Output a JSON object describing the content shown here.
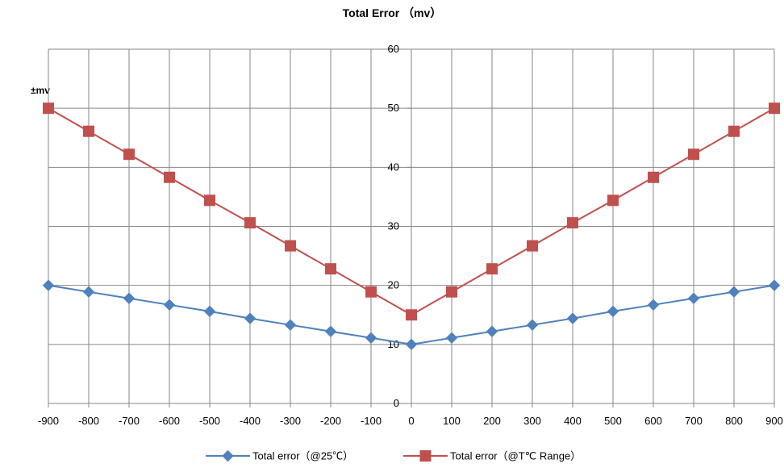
{
  "chart_data": {
    "type": "line",
    "title": "Total Error （mv）",
    "ylabel": "±mv",
    "xlabel": "",
    "x": [
      -900,
      -800,
      -700,
      -600,
      -500,
      -400,
      -300,
      -200,
      -100,
      0,
      100,
      200,
      300,
      400,
      500,
      600,
      700,
      800,
      900
    ],
    "xlim": [
      -900,
      900
    ],
    "ylim": [
      0,
      60
    ],
    "yticks": [
      0,
      10,
      20,
      30,
      40,
      50,
      60
    ],
    "grid": true,
    "legend_position": "bottom",
    "series": [
      {
        "name": "Total error（@25℃）",
        "color": "#4f81bd",
        "marker": "diamond",
        "values": [
          20,
          18.9,
          17.8,
          16.7,
          15.6,
          14.4,
          13.3,
          12.2,
          11.1,
          10,
          11.1,
          12.2,
          13.3,
          14.4,
          15.6,
          16.7,
          17.8,
          18.9,
          20
        ]
      },
      {
        "name": "Total error（@T℃ Range）",
        "color": "#c0504d",
        "marker": "square",
        "values": [
          50,
          46.1,
          42.2,
          38.3,
          34.4,
          30.6,
          26.7,
          22.8,
          18.9,
          15,
          18.9,
          22.8,
          26.7,
          30.6,
          34.4,
          38.3,
          42.2,
          46.1,
          50
        ]
      }
    ]
  }
}
